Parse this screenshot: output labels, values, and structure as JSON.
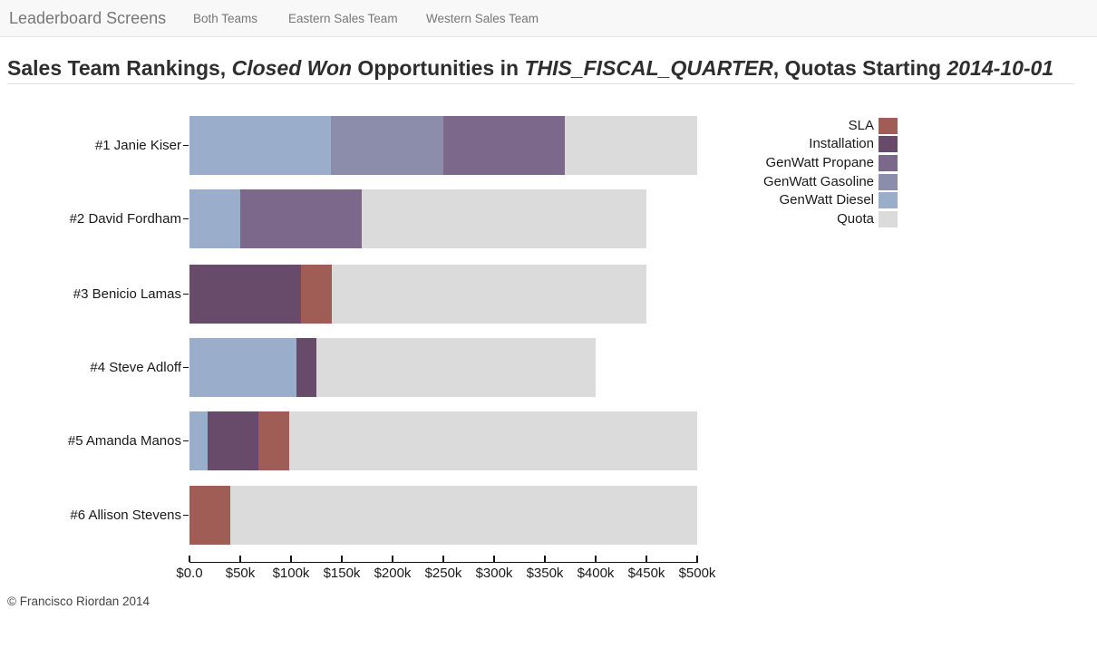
{
  "navbar": {
    "brand": "Leaderboard Screens",
    "links": [
      "Both Teams",
      "Eastern Sales Team",
      "Western Sales Team"
    ]
  },
  "title": {
    "full": "Sales Team Rankings, Closed Won Opportunities in THIS_FISCAL_QUARTER, Quotas Starting 2014-10-01",
    "segments": [
      {
        "text": "Sales Team Rankings, ",
        "italic": false
      },
      {
        "text": "Closed Won",
        "italic": true
      },
      {
        "text": " Opportunities in ",
        "italic": false
      },
      {
        "text": "THIS_FISCAL_QUARTER",
        "italic": true
      },
      {
        "text": ", Quotas Starting ",
        "italic": false
      },
      {
        "text": "2014-10-01",
        "italic": true
      }
    ]
  },
  "chart_data": {
    "type": "bar",
    "orientation": "horizontal",
    "stacked": true,
    "title": "Sales Team Rankings, Closed Won Opportunities in THIS_FISCAL_QUARTER, Quotas Starting 2014-10-01",
    "units": "USD thousands",
    "categories": [
      "#1 Janie Kiser",
      "#2 David Fordham",
      "#3 Benicio Lamas",
      "#4 Steve Adloff",
      "#5 Amanda Manos",
      "#6 Allison Stevens"
    ],
    "series": [
      {
        "name": "GenWatt Diesel",
        "color": "#9aaecb",
        "values": [
          139,
          50,
          0,
          105,
          18,
          0
        ]
      },
      {
        "name": "GenWatt Gasoline",
        "color": "#8b8dab",
        "values": [
          111,
          0,
          0,
          0,
          0,
          0
        ]
      },
      {
        "name": "GenWatt Propane",
        "color": "#7b688b",
        "values": [
          120,
          120,
          0,
          0,
          0,
          0
        ]
      },
      {
        "name": "Installation",
        "color": "#684a6b",
        "values": [
          0,
          0,
          110,
          20,
          50,
          0
        ]
      },
      {
        "name": "SLA",
        "color": "#a05d55",
        "values": [
          0,
          0,
          30,
          0,
          30,
          40
        ]
      },
      {
        "name": "Quota",
        "color": "#dbdbdb",
        "values": [
          130,
          280,
          310,
          275,
          402,
          460
        ]
      }
    ],
    "quota_totals_k": [
      500,
      450,
      450,
      400,
      500,
      500
    ],
    "x_axis": {
      "tick_labels": [
        "$0.0",
        "$50k",
        "$100k",
        "$150k",
        "$200k",
        "$250k",
        "$300k",
        "$350k",
        "$400k",
        "$450k",
        "$500k"
      ],
      "tick_values_k": [
        0,
        50,
        100,
        150,
        200,
        250,
        300,
        350,
        400,
        450,
        500
      ],
      "range_k": [
        0,
        500
      ],
      "grid": false
    },
    "legend": [
      {
        "label": "SLA",
        "color": "#a05d55"
      },
      {
        "label": "Installation",
        "color": "#684a6b"
      },
      {
        "label": "GenWatt Propane",
        "color": "#7b688b"
      },
      {
        "label": "GenWatt Gasoline",
        "color": "#8b8dab"
      },
      {
        "label": "GenWatt Diesel",
        "color": "#9aaecb"
      },
      {
        "label": "Quota",
        "color": "#dbdbdb"
      }
    ],
    "legend_position": "right"
  },
  "footer": {
    "copyright": "© Francisco Riordan 2014"
  }
}
